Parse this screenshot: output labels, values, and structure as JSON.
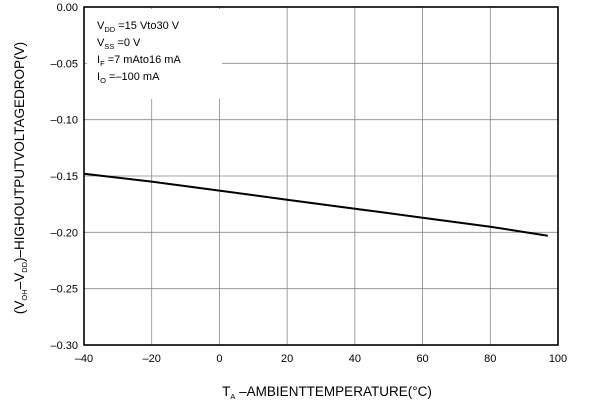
{
  "chart_data": {
    "type": "line",
    "xlabel": {
      "main": "T",
      "sub": "A",
      "rest": " –AMBIENTTEMPERATURE(°C)"
    },
    "ylabel": {
      "p1": "(V",
      "s1": "OH",
      "p2": "–V",
      "s2": "DD",
      "p3": ")–HIGHOUTPUTVOLTAGEDROP(V)"
    },
    "xlim": [
      -40,
      100
    ],
    "ylim": [
      -0.3,
      0.0
    ],
    "xticks": [
      -40,
      -20,
      0,
      20,
      40,
      60,
      80,
      100
    ],
    "xtick_labels": [
      "–40",
      "–20",
      "0",
      "20",
      "40",
      "60",
      "80",
      "100"
    ],
    "yticks": [
      0.0,
      -0.05,
      -0.1,
      -0.15,
      -0.2,
      -0.25,
      -0.3
    ],
    "ytick_labels": [
      "0.00",
      "–0.05",
      "–0.10",
      "–0.15",
      "–0.20",
      "–0.25",
      "–0.30"
    ],
    "grid": true,
    "series": [
      {
        "x": [
          -40,
          -20,
          0,
          20,
          40,
          60,
          80,
          97
        ],
        "y": [
          -0.148,
          -0.155,
          -0.163,
          -0.171,
          -0.179,
          -0.187,
          -0.195,
          -0.203
        ]
      }
    ],
    "conditions": [
      {
        "pre": "V",
        "sub": "DD",
        "post": " =15 Vto30 V"
      },
      {
        "pre": "V",
        "sub": "SS",
        "post": " =0 V"
      },
      {
        "pre": "I",
        "sub": "F",
        "post": " =7  mAto16 mA"
      },
      {
        "pre": "I",
        "sub": "O",
        "post": " =–100  mA"
      }
    ]
  }
}
